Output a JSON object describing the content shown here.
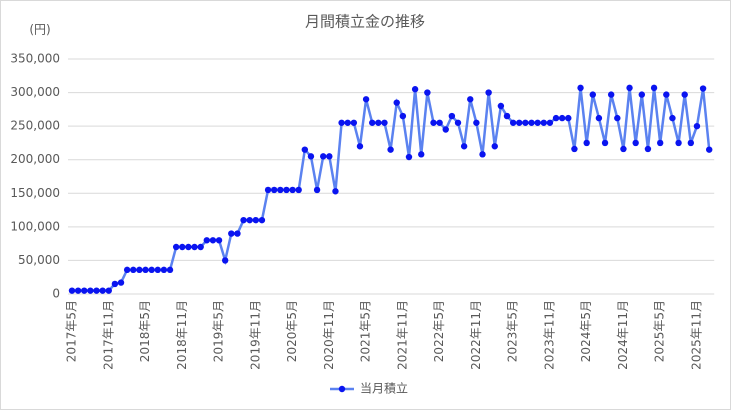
{
  "chart_data": {
    "type": "line",
    "title": "月間積立金の推移",
    "y_unit_label": "(円)",
    "categories": [
      "2017年5月",
      null,
      null,
      null,
      null,
      null,
      "2017年11月",
      null,
      null,
      null,
      null,
      null,
      "2018年5月",
      null,
      null,
      null,
      null,
      null,
      "2018年11月",
      null,
      null,
      null,
      null,
      null,
      "2019年5月",
      null,
      null,
      null,
      null,
      null,
      "2019年11月",
      null,
      null,
      null,
      null,
      null,
      "2020年5月",
      null,
      null,
      null,
      null,
      null,
      "2020年11月",
      null,
      null,
      null,
      null,
      null,
      "2021年5月",
      null,
      null,
      null,
      null,
      null,
      "2021年11月",
      null,
      null,
      null,
      null,
      null,
      "2022年5月",
      null,
      null,
      null,
      null,
      null,
      "2022年11月",
      null,
      null,
      null,
      null,
      null,
      "2023年5月",
      null,
      null,
      null,
      null,
      null,
      "2023年11月",
      null,
      null,
      null,
      null,
      null,
      "2024年5月",
      null,
      null,
      null,
      null,
      null,
      "2024年11月",
      null,
      null,
      null,
      null,
      null,
      "2025年5月",
      null,
      null,
      null,
      null,
      null,
      "2025年11月",
      null,
      null
    ],
    "series": [
      {
        "name": "当月積立",
        "line_color": "#5b82f0",
        "marker_color": "#0a14f0",
        "values": [
          5000,
          5000,
          5000,
          5000,
          5000,
          5000,
          5000,
          15000,
          17000,
          36000,
          36000,
          36000,
          36000,
          36000,
          36000,
          36000,
          36000,
          70000,
          70000,
          70000,
          70000,
          70000,
          80000,
          80000,
          80000,
          50000,
          90000,
          90000,
          110000,
          110000,
          110000,
          110000,
          155000,
          155000,
          155000,
          155000,
          155000,
          155000,
          215000,
          205000,
          155000,
          205000,
          205000,
          153000,
          255000,
          255000,
          255000,
          220000,
          290000,
          255000,
          255000,
          255000,
          215000,
          285000,
          265000,
          204000,
          305000,
          208000,
          300000,
          255000,
          255000,
          245000,
          265000,
          255000,
          220000,
          290000,
          255000,
          208000,
          300000,
          220000,
          280000,
          265000,
          255000,
          255000,
          255000,
          255000,
          255000,
          255000,
          255000,
          262000,
          262000,
          262000,
          216000,
          307000,
          225000,
          297000,
          262000,
          225000,
          297000,
          262000,
          216000,
          307000,
          225000,
          297000,
          216000,
          307000,
          225000,
          297000,
          262000,
          225000,
          297000,
          225000,
          250000,
          306000,
          215000
        ]
      }
    ],
    "ylim": [
      0,
      350000
    ],
    "yticks": [
      0,
      {
        "value": 50000,
        "label": "50,000"
      },
      {
        "value": 100000,
        "label": "100,000"
      },
      {
        "value": 150000,
        "label": "150,000"
      },
      {
        "value": 200000,
        "label": "200,000"
      },
      {
        "value": 250000,
        "label": "250,000"
      },
      {
        "value": 300000,
        "label": "300,000"
      },
      {
        "value": 350000,
        "label": "350,000"
      }
    ],
    "grid": true,
    "legend": "bottom"
  }
}
